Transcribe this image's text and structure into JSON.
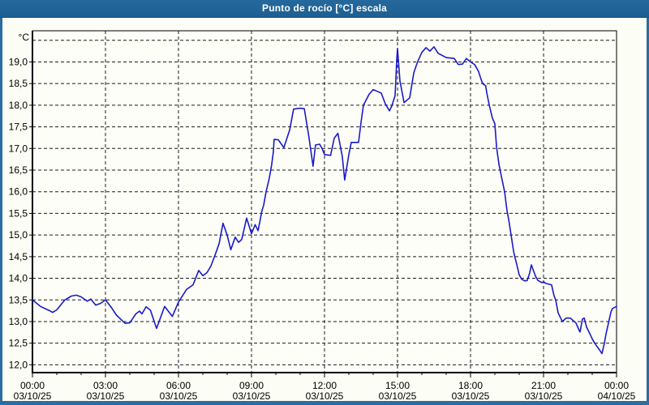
{
  "window": {
    "title": "Punto de rocío [°C] escala"
  },
  "colors": {
    "titlebar_bg": "#1f6396",
    "window_border": "#2b6ca3",
    "content_bg": "#fcfdf4",
    "plot_bg": "#fefef8",
    "grid_color": "#1a1a1a",
    "axis_color": "#000000",
    "text_color": "#000000",
    "line_color": "#1a1ac8"
  },
  "chart_data": {
    "type": "line",
    "title": "Punto de rocío [°C] escala",
    "unit_label": "°C",
    "xlabel": "",
    "ylabel": "°C",
    "grid": "dashed",
    "legend": "none",
    "ylim": [
      11.82,
      19.72
    ],
    "xlim_hours": [
      0,
      24
    ],
    "x_major_step_hours": 3,
    "x_minor_step_hours": 1,
    "y_extra_gridlines": [
      19.5
    ],
    "y_ticks": [
      {
        "value": 19.0,
        "label": "19,0"
      },
      {
        "value": 18.5,
        "label": "18,5"
      },
      {
        "value": 18.0,
        "label": "18,0"
      },
      {
        "value": 17.5,
        "label": "17,5"
      },
      {
        "value": 17.0,
        "label": "17,0"
      },
      {
        "value": 16.5,
        "label": "16,5"
      },
      {
        "value": 16.0,
        "label": "16,0"
      },
      {
        "value": 15.5,
        "label": "15,5"
      },
      {
        "value": 15.0,
        "label": "15,0"
      },
      {
        "value": 14.5,
        "label": "14,5"
      },
      {
        "value": 14.0,
        "label": "14,0"
      },
      {
        "value": 13.5,
        "label": "13,5"
      },
      {
        "value": 13.0,
        "label": "13,0"
      },
      {
        "value": 12.5,
        "label": "12,5"
      },
      {
        "value": 12.0,
        "label": "12,0"
      }
    ],
    "x_ticks": [
      {
        "hour": 0,
        "time": "00:00",
        "date": "03/10/25"
      },
      {
        "hour": 3,
        "time": "03:00",
        "date": "03/10/25"
      },
      {
        "hour": 6,
        "time": "06:00",
        "date": "03/10/25"
      },
      {
        "hour": 9,
        "time": "09:00",
        "date": "03/10/25"
      },
      {
        "hour": 12,
        "time": "12:00",
        "date": "03/10/25"
      },
      {
        "hour": 15,
        "time": "15:00",
        "date": "03/10/25"
      },
      {
        "hour": 18,
        "time": "18:00",
        "date": "03/10/25"
      },
      {
        "hour": 21,
        "time": "21:00",
        "date": "03/10/25"
      },
      {
        "hour": 24,
        "time": "00:00",
        "date": "04/10/25"
      }
    ],
    "series": [
      {
        "name": "Punto de rocío",
        "color": "#1a1ac8",
        "points": [
          [
            0,
            13.5
          ],
          [
            0.33,
            13.35
          ],
          [
            0.67,
            13.26
          ],
          [
            0.83,
            13.21
          ],
          [
            1,
            13.27
          ],
          [
            1.33,
            13.5
          ],
          [
            1.6,
            13.59
          ],
          [
            1.8,
            13.61
          ],
          [
            2,
            13.57
          ],
          [
            2.25,
            13.47
          ],
          [
            2.4,
            13.52
          ],
          [
            2.6,
            13.38
          ],
          [
            2.8,
            13.42
          ],
          [
            3,
            13.5
          ],
          [
            3.25,
            13.32
          ],
          [
            3.45,
            13.15
          ],
          [
            3.8,
            12.96
          ],
          [
            4,
            12.97
          ],
          [
            4.25,
            13.18
          ],
          [
            4.4,
            13.24
          ],
          [
            4.5,
            13.18
          ],
          [
            4.67,
            13.34
          ],
          [
            4.85,
            13.26
          ],
          [
            5.1,
            12.84
          ],
          [
            5.43,
            13.35
          ],
          [
            5.75,
            13.12
          ],
          [
            6,
            13.45
          ],
          [
            6.33,
            13.74
          ],
          [
            6.6,
            13.85
          ],
          [
            6.83,
            14.18
          ],
          [
            7,
            14.06
          ],
          [
            7.17,
            14.13
          ],
          [
            7.33,
            14.28
          ],
          [
            7.5,
            14.53
          ],
          [
            7.67,
            14.8
          ],
          [
            7.83,
            15.27
          ],
          [
            8,
            15.0
          ],
          [
            8.15,
            14.66
          ],
          [
            8.33,
            14.95
          ],
          [
            8.47,
            14.83
          ],
          [
            8.6,
            14.9
          ],
          [
            8.8,
            15.39
          ],
          [
            9,
            15.03
          ],
          [
            9.15,
            15.24
          ],
          [
            9.27,
            15.1
          ],
          [
            9.43,
            15.56
          ],
          [
            9.5,
            15.69
          ],
          [
            9.6,
            16.0
          ],
          [
            9.73,
            16.31
          ],
          [
            9.83,
            16.63
          ],
          [
            9.9,
            16.93
          ],
          [
            9.93,
            17.21
          ],
          [
            10.1,
            17.2
          ],
          [
            10.33,
            17.02
          ],
          [
            10.57,
            17.43
          ],
          [
            10.73,
            17.91
          ],
          [
            11,
            17.93
          ],
          [
            11.17,
            17.92
          ],
          [
            11.35,
            17.3
          ],
          [
            11.53,
            16.59
          ],
          [
            11.63,
            17.08
          ],
          [
            11.8,
            17.1
          ],
          [
            11.9,
            17.0
          ],
          [
            12,
            16.86
          ],
          [
            12.25,
            16.84
          ],
          [
            12.4,
            17.24
          ],
          [
            12.55,
            17.35
          ],
          [
            12.73,
            16.82
          ],
          [
            12.83,
            16.27
          ],
          [
            13,
            16.86
          ],
          [
            13.1,
            17.14
          ],
          [
            13.4,
            17.14
          ],
          [
            13.5,
            17.6
          ],
          [
            13.6,
            18.0
          ],
          [
            13.83,
            18.25
          ],
          [
            14,
            18.36
          ],
          [
            14.17,
            18.32
          ],
          [
            14.33,
            18.28
          ],
          [
            14.5,
            18.03
          ],
          [
            14.67,
            17.87
          ],
          [
            14.77,
            17.99
          ],
          [
            14.9,
            18.22
          ],
          [
            14.97,
            19.07
          ],
          [
            15,
            19.31
          ],
          [
            15.1,
            18.56
          ],
          [
            15.27,
            18.06
          ],
          [
            15.5,
            18.17
          ],
          [
            15.67,
            18.75
          ],
          [
            15.83,
            19.01
          ],
          [
            16,
            19.22
          ],
          [
            16.17,
            19.33
          ],
          [
            16.33,
            19.25
          ],
          [
            16.5,
            19.35
          ],
          [
            16.67,
            19.2
          ],
          [
            17,
            19.1
          ],
          [
            17.33,
            19.08
          ],
          [
            17.5,
            18.94
          ],
          [
            17.67,
            18.95
          ],
          [
            17.83,
            19.08
          ],
          [
            18,
            19.0
          ],
          [
            18.17,
            18.94
          ],
          [
            18.33,
            18.78
          ],
          [
            18.43,
            18.6
          ],
          [
            18.5,
            18.5
          ],
          [
            18.62,
            18.45
          ],
          [
            18.67,
            18.28
          ],
          [
            18.77,
            18.0
          ],
          [
            18.9,
            17.7
          ],
          [
            19,
            17.57
          ],
          [
            19.07,
            17.03
          ],
          [
            19.17,
            16.63
          ],
          [
            19.27,
            16.35
          ],
          [
            19.4,
            16.0
          ],
          [
            19.5,
            15.56
          ],
          [
            19.57,
            15.35
          ],
          [
            19.67,
            14.99
          ],
          [
            19.77,
            14.62
          ],
          [
            19.83,
            14.47
          ],
          [
            19.9,
            14.32
          ],
          [
            20,
            14.08
          ],
          [
            20.1,
            13.98
          ],
          [
            20.23,
            13.94
          ],
          [
            20.33,
            13.95
          ],
          [
            20.43,
            14.12
          ],
          [
            20.5,
            14.31
          ],
          [
            20.57,
            14.2
          ],
          [
            20.67,
            14.05
          ],
          [
            20.77,
            13.95
          ],
          [
            20.93,
            13.9
          ],
          [
            21,
            13.92
          ],
          [
            21.1,
            13.88
          ],
          [
            21.33,
            13.85
          ],
          [
            21.43,
            13.6
          ],
          [
            21.5,
            13.5
          ],
          [
            21.6,
            13.2
          ],
          [
            21.73,
            13.05
          ],
          [
            21.77,
            13.0
          ],
          [
            21.93,
            13.08
          ],
          [
            22.1,
            13.08
          ],
          [
            22.33,
            12.97
          ],
          [
            22.47,
            12.79
          ],
          [
            22.5,
            12.76
          ],
          [
            22.6,
            13.06
          ],
          [
            22.67,
            13.08
          ],
          [
            22.77,
            12.87
          ],
          [
            22.9,
            12.72
          ],
          [
            23,
            12.6
          ],
          [
            23.1,
            12.5
          ],
          [
            23.23,
            12.4
          ],
          [
            23.33,
            12.32
          ],
          [
            23.4,
            12.26
          ],
          [
            23.5,
            12.5
          ],
          [
            23.57,
            12.72
          ],
          [
            23.67,
            12.97
          ],
          [
            23.77,
            13.22
          ],
          [
            23.83,
            13.3
          ],
          [
            23.93,
            13.33
          ],
          [
            24,
            13.35
          ]
        ]
      }
    ]
  }
}
